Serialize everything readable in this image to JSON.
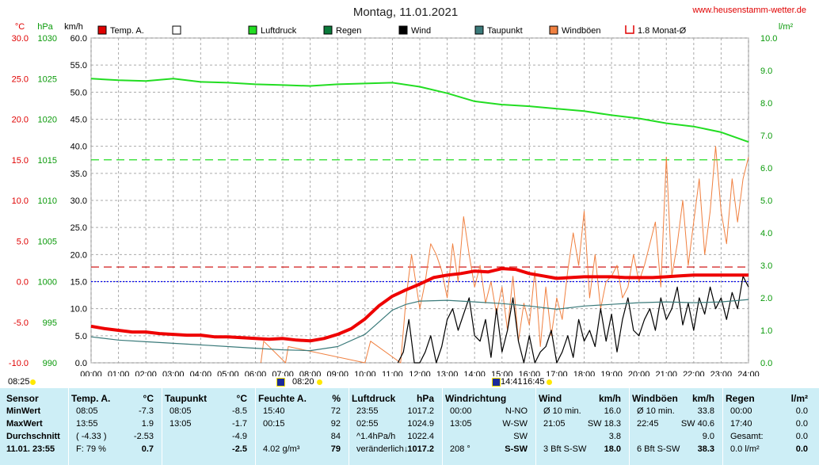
{
  "title": "Montag, 11.01.2021",
  "website": "www.heusenstamm-wetter.de",
  "units": {
    "temp": "°C",
    "pressure": "hPa",
    "wind": "km/h",
    "rain": "l/m²"
  },
  "legend": [
    {
      "label": "Temp. A.",
      "color": "#e00000",
      "style": "filled"
    },
    {
      "label": "",
      "color": "#ffffff",
      "style": "empty"
    },
    {
      "label": "Luftdruck",
      "color": "#22dd22",
      "style": "filled"
    },
    {
      "label": "Regen",
      "color": "#0a7a3a",
      "style": "filled"
    },
    {
      "label": "Wind",
      "color": "#000000",
      "style": "filled"
    },
    {
      "label": "Taupunkt",
      "color": "#3a7a7a",
      "style": "filled"
    },
    {
      "label": "Windböen",
      "color": "#f08040",
      "style": "filled"
    },
    {
      "label": "1.8 Monat-Ø",
      "color": "#e00000",
      "style": "bracket"
    }
  ],
  "axes": {
    "temp_ticks": [
      "30.0",
      "25.0",
      "20.0",
      "15.0",
      "10.0",
      "5.0",
      "0.0",
      "-5.0",
      "-10.0"
    ],
    "pressure_ticks": [
      "1030",
      "1025",
      "1020",
      "1015",
      "1010",
      "1005",
      "1000",
      "995",
      "990"
    ],
    "wind_ticks": [
      "60.0",
      "55.0",
      "50.0",
      "45.0",
      "40.0",
      "35.0",
      "30.0",
      "25.0",
      "20.0",
      "15.0",
      "10.0",
      "5.0",
      "0.0"
    ],
    "rain_ticks": [
      "10.0",
      "9.0",
      "8.0",
      "7.0",
      "6.0",
      "5.0",
      "4.0",
      "3.0",
      "2.0",
      "1.0",
      "0.0"
    ],
    "time_ticks": [
      "00:00",
      "01:00",
      "02:00",
      "03:00",
      "04:00",
      "05:00",
      "06:00",
      "07:00",
      "08:00",
      "09:00",
      "10:00",
      "11:00",
      "12:00",
      "13:00",
      "14:00",
      "15:00",
      "16:00",
      "17:00",
      "18:00",
      "19:00",
      "20:00",
      "21:00",
      "22:00",
      "23:00",
      "24:00"
    ]
  },
  "sun": {
    "sunrise": "08:25",
    "sunrise_marker": "07:00",
    "sunrise2": "08:20",
    "moon": "14:41",
    "sunset": "16:45"
  },
  "chart_data": {
    "type": "line",
    "x_unit": "hours",
    "xlim": [
      0,
      24
    ],
    "temp_ylim": [
      -10,
      30
    ],
    "pressure_ylim": [
      990,
      1030
    ],
    "wind_ylim": [
      0,
      60
    ],
    "rain_ylim": [
      0,
      10
    ],
    "reference_lines": {
      "temp_month_avg": 1.8,
      "pressure_ref": 1015,
      "temp_zero": 0
    },
    "series": [
      {
        "name": "Temp. A.",
        "axis": "temp",
        "color": "#ee0000",
        "x": [
          0,
          0.5,
          1,
          1.5,
          2,
          2.5,
          3,
          3.5,
          4,
          4.5,
          5,
          5.5,
          6,
          6.5,
          7,
          7.5,
          8,
          8.5,
          9,
          9.5,
          10,
          10.5,
          11,
          11.5,
          12,
          12.5,
          13,
          13.5,
          14,
          14.5,
          15,
          15.5,
          16,
          16.5,
          17,
          17.5,
          18,
          18.5,
          19,
          19.5,
          20,
          20.5,
          21,
          21.5,
          22,
          22.5,
          23,
          23.5,
          24
        ],
        "y": [
          -5.5,
          -5.8,
          -6.0,
          -6.2,
          -6.2,
          -6.4,
          -6.5,
          -6.6,
          -6.6,
          -6.8,
          -6.8,
          -6.9,
          -7.0,
          -7.1,
          -7.0,
          -7.2,
          -7.3,
          -7.0,
          -6.5,
          -5.8,
          -4.6,
          -3.0,
          -1.8,
          -1.0,
          -0.3,
          0.5,
          0.8,
          1.0,
          1.3,
          1.2,
          1.6,
          1.5,
          1.0,
          0.7,
          0.4,
          0.5,
          0.6,
          0.6,
          0.6,
          0.5,
          0.5,
          0.5,
          0.6,
          0.7,
          0.8,
          0.8,
          0.8,
          0.8,
          0.8
        ]
      },
      {
        "name": "Taupunkt",
        "axis": "temp",
        "color": "#3a7a7a",
        "x": [
          0,
          1,
          2,
          3,
          4,
          5,
          6,
          7,
          8,
          9,
          10,
          10.5,
          11,
          11.5,
          12,
          13,
          14,
          15,
          16,
          17,
          18,
          19,
          20,
          21,
          22,
          23,
          24
        ],
        "y": [
          -6.8,
          -7.2,
          -7.4,
          -7.6,
          -7.8,
          -8.0,
          -8.2,
          -8.4,
          -8.5,
          -8.0,
          -6.5,
          -5.0,
          -3.5,
          -2.8,
          -2.4,
          -2.3,
          -2.5,
          -2.7,
          -3.0,
          -3.4,
          -3.0,
          -2.8,
          -2.6,
          -2.5,
          -2.6,
          -2.5,
          -2.2
        ]
      },
      {
        "name": "Luftdruck",
        "axis": "pressure",
        "color": "#22dd22",
        "x": [
          0,
          1,
          2,
          3,
          4,
          5,
          6,
          7,
          8,
          9,
          10,
          11,
          12,
          13,
          14,
          15,
          16,
          17,
          18,
          19,
          20,
          21,
          22,
          23,
          24
        ],
        "y": [
          1025.0,
          1024.8,
          1024.7,
          1025.0,
          1024.6,
          1024.5,
          1024.3,
          1024.2,
          1024.1,
          1024.3,
          1024.4,
          1024.5,
          1024.0,
          1023.2,
          1022.2,
          1021.8,
          1021.6,
          1021.3,
          1021.0,
          1020.5,
          1020.1,
          1019.5,
          1019.1,
          1018.4,
          1017.2
        ]
      },
      {
        "name": "Wind",
        "axis": "wind",
        "color": "#000000",
        "x": [
          11.2,
          11.4,
          11.6,
          11.8,
          12.0,
          12.2,
          12.4,
          12.6,
          12.8,
          13.0,
          13.2,
          13.4,
          13.6,
          13.8,
          14.0,
          14.2,
          14.4,
          14.6,
          14.8,
          15.0,
          15.2,
          15.4,
          15.6,
          15.8,
          16.0,
          16.2,
          16.4,
          16.6,
          16.8,
          17.0,
          17.2,
          17.4,
          17.6,
          17.8,
          18.0,
          18.2,
          18.4,
          18.6,
          18.8,
          19.0,
          19.2,
          19.4,
          19.6,
          19.8,
          20.0,
          20.2,
          20.4,
          20.6,
          20.8,
          21.0,
          21.2,
          21.4,
          21.6,
          21.8,
          22.0,
          22.2,
          22.4,
          22.6,
          22.8,
          23.0,
          23.2,
          23.4,
          23.6,
          23.8,
          24.0
        ],
        "y": [
          0,
          2,
          8,
          0,
          0,
          2,
          5,
          0,
          3,
          8,
          10,
          6,
          9,
          12,
          5,
          4,
          8,
          1,
          10,
          2,
          6,
          12,
          4,
          0,
          5,
          0,
          2,
          3,
          6,
          0,
          2,
          5,
          1,
          8,
          4,
          6,
          3,
          10,
          4,
          9,
          2,
          8,
          12,
          6,
          5,
          8,
          10,
          6,
          12,
          8,
          10,
          14,
          7,
          11,
          6,
          12,
          9,
          14,
          10,
          12,
          8,
          13,
          10,
          16,
          14
        ]
      },
      {
        "name": "Windböen",
        "axis": "wind",
        "color": "#f08040",
        "x": [
          6.2,
          6.3,
          7.1,
          7.2,
          10.0,
          10.2,
          11.3,
          11.5,
          11.7,
          12.0,
          12.2,
          12.4,
          12.6,
          12.8,
          13.0,
          13.2,
          13.4,
          13.6,
          13.8,
          14.0,
          14.2,
          14.4,
          14.6,
          14.8,
          15.0,
          15.2,
          15.4,
          15.6,
          15.8,
          16.0,
          16.2,
          16.4,
          16.6,
          16.8,
          17.0,
          17.2,
          17.4,
          17.6,
          17.8,
          18.0,
          18.2,
          18.4,
          18.6,
          18.8,
          19.0,
          19.2,
          19.4,
          19.6,
          19.8,
          20.0,
          20.2,
          20.4,
          20.6,
          20.8,
          21.0,
          21.2,
          21.4,
          21.6,
          21.8,
          22.0,
          22.2,
          22.4,
          22.6,
          22.8,
          23.0,
          23.2,
          23.4,
          23.6,
          23.8,
          24.0
        ],
        "y": [
          0,
          4,
          0,
          3,
          0,
          4,
          0,
          12,
          20,
          10,
          15,
          22,
          20,
          17,
          12,
          22,
          15,
          27,
          20,
          14,
          18,
          11,
          15,
          9,
          14,
          6,
          16,
          4,
          11,
          7,
          17,
          3,
          14,
          5,
          12,
          8,
          17,
          24,
          18,
          28,
          12,
          20,
          10,
          15,
          16,
          18,
          12,
          14,
          20,
          15,
          18,
          22,
          26,
          14,
          38,
          16,
          22,
          30,
          18,
          26,
          34,
          20,
          28,
          40,
          28,
          22,
          34,
          26,
          34,
          38
        ]
      }
    ]
  },
  "table": {
    "row_labels": [
      "Sensor",
      "MinWert",
      "MaxWert",
      "Durchschnitt",
      "11.01. 23:55"
    ],
    "columns": [
      {
        "title": "Temp. A.",
        "unit": "°C",
        "rows": [
          [
            "08:05",
            "-7.3"
          ],
          [
            "13:55",
            "1.9"
          ],
          [
            "( -4.33 )",
            "-2.53"
          ],
          [
            "F: 79 %",
            "0.7"
          ]
        ]
      },
      {
        "title": "Taupunkt",
        "unit": "°C",
        "rows": [
          [
            "08:05",
            "-8.5"
          ],
          [
            "13:05",
            "-1.7"
          ],
          [
            "",
            "-4.9"
          ],
          [
            "",
            "-2.5"
          ]
        ]
      },
      {
        "title": "Feuchte A.",
        "unit": "%",
        "rows": [
          [
            "15:40",
            "72"
          ],
          [
            "00:15",
            "92"
          ],
          [
            "",
            "84"
          ],
          [
            "4.02 g/m³",
            "79"
          ]
        ]
      },
      {
        "title": "Luftdruck",
        "unit": "hPa",
        "rows": [
          [
            "23:55",
            "1017.2"
          ],
          [
            "02:55",
            "1024.9"
          ],
          [
            "^1.4hPa/h",
            "1022.4"
          ],
          [
            "veränderlich↓",
            "1017.2"
          ]
        ]
      },
      {
        "title": "Windrichtung",
        "unit": "",
        "rows": [
          [
            "00:00",
            "N-NO"
          ],
          [
            "13:05",
            "W-SW"
          ],
          [
            "",
            "SW"
          ],
          [
            "208 °",
            "S-SW"
          ]
        ]
      },
      {
        "title": "Wind",
        "unit": "km/h",
        "rows": [
          [
            "Ø 10 min.",
            "16.0"
          ],
          [
            "21:05",
            "SW 18.3"
          ],
          [
            "",
            "3.8"
          ],
          [
            "3 Bft S-SW",
            "18.0"
          ]
        ]
      },
      {
        "title": "Windböen",
        "unit": "km/h",
        "rows": [
          [
            "Ø 10 min.",
            "33.8"
          ],
          [
            "22:45",
            "SW 40.6"
          ],
          [
            "",
            "9.0"
          ],
          [
            "6 Bft S-SW",
            "38.3"
          ]
        ]
      },
      {
        "title": "Regen",
        "unit": "l/m²",
        "rows": [
          [
            "00:00",
            "0.0"
          ],
          [
            "17:40",
            "0.0"
          ],
          [
            "Gesamt:",
            "0.0"
          ],
          [
            "0.0 l/m²",
            "0.0"
          ]
        ]
      }
    ]
  }
}
